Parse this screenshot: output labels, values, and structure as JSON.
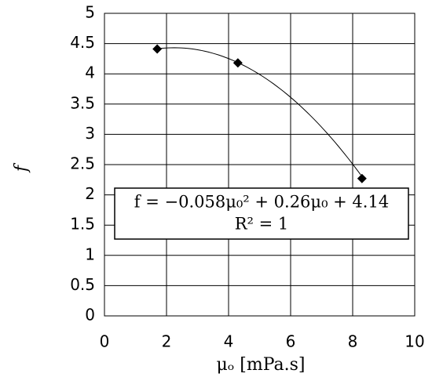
{
  "chart_data": {
    "type": "scatter",
    "x_label": "μₒ [mPa.s]",
    "y_label": "f",
    "series": [
      {
        "color": "#000000",
        "x": [
          1.7,
          4.3,
          8.3
        ],
        "values": [
          4.41,
          4.18,
          2.27
        ]
      }
    ],
    "trendline": {
      "equation": "f = −0.058μ₀² + 0.26μ₀ + 4.14",
      "r2": "R² = 1",
      "coefficients": [
        -0.058,
        0.26,
        4.14
      ],
      "color": "#000000"
    },
    "xlim": [
      0,
      10
    ],
    "xticks": [
      0,
      2,
      4,
      6,
      8,
      10
    ],
    "ylim": [
      0,
      5
    ],
    "yticks": [
      0,
      0.5,
      1,
      1.5,
      2,
      2.5,
      3,
      3.5,
      4,
      4.5,
      5
    ],
    "grid": true
  }
}
